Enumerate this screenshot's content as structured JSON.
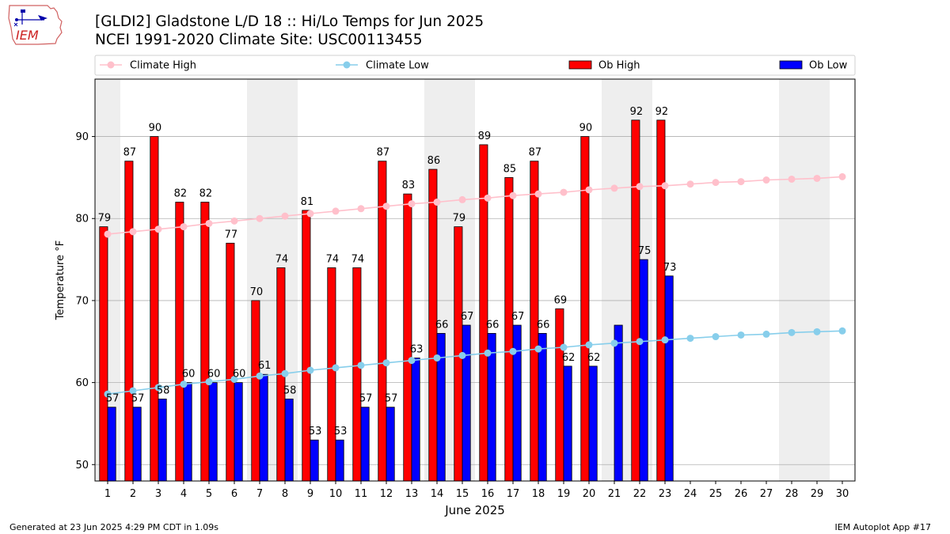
{
  "header": {
    "title_line1": "[GLDI2] Gladstone L/D 18 :: Hi/Lo Temps for Jun 2025",
    "title_line2": "NCEI 1991-2020 Climate Site: USC00113455",
    "logo_text": "IEM"
  },
  "footer": {
    "generated": "Generated at 23 Jun 2025 4:29 PM CDT in 1.09s",
    "app": "IEM Autoplot App #17"
  },
  "colors": {
    "ob_high": "#ff0000",
    "ob_low": "#0000ff",
    "climate_high": "#ffc0cb",
    "climate_low": "#87ceeb",
    "weekend_shade": "#eeeeee",
    "grid": "#b0b0b0"
  },
  "chart_data": {
    "type": "bar",
    "title": "[GLDI2] Gladstone L/D 18 :: Hi/Lo Temps for Jun 2025",
    "subtitle": "NCEI 1991-2020 Climate Site: USC00113455",
    "xlabel": "June 2025",
    "ylabel": "Temperature °F",
    "ylim": [
      48,
      97
    ],
    "yticks": [
      50,
      60,
      70,
      80,
      90
    ],
    "grid": true,
    "legend_placement": "top, above plot",
    "categories": [
      "1",
      "2",
      "3",
      "4",
      "5",
      "6",
      "7",
      "8",
      "9",
      "10",
      "11",
      "12",
      "13",
      "14",
      "15",
      "16",
      "17",
      "18",
      "19",
      "20",
      "21",
      "22",
      "23",
      "24",
      "25",
      "26",
      "27",
      "28",
      "29",
      "30"
    ],
    "weekend_shaded_days": [
      1,
      7,
      8,
      14,
      15,
      21,
      22,
      28,
      29
    ],
    "series": [
      {
        "name": "Ob High",
        "kind": "bar",
        "values": [
          79,
          87,
          90,
          82,
          82,
          77,
          70,
          74,
          81,
          74,
          74,
          87,
          83,
          86,
          79,
          89,
          85,
          87,
          69,
          90,
          null,
          92,
          92,
          null,
          null,
          null,
          null,
          null,
          null,
          null
        ]
      },
      {
        "name": "Ob Low",
        "kind": "bar",
        "values": [
          57,
          57,
          58,
          60,
          60,
          60,
          61,
          58,
          53,
          53,
          57,
          57,
          63,
          66,
          67,
          66,
          67,
          66,
          62,
          62,
          67,
          75,
          73,
          null,
          null,
          null,
          null,
          null,
          null,
          null
        ]
      },
      {
        "name": "Climate High",
        "kind": "line",
        "values": [
          78.1,
          78.4,
          78.7,
          79.0,
          79.4,
          79.7,
          80.0,
          80.3,
          80.6,
          80.9,
          81.2,
          81.5,
          81.8,
          82.0,
          82.3,
          82.5,
          82.8,
          83.0,
          83.2,
          83.5,
          83.7,
          83.9,
          84.0,
          84.2,
          84.4,
          84.5,
          84.7,
          84.8,
          84.9,
          85.1
        ]
      },
      {
        "name": "Climate Low",
        "kind": "line",
        "values": [
          58.6,
          59.0,
          59.4,
          59.8,
          60.1,
          60.4,
          60.8,
          61.1,
          61.5,
          61.8,
          62.1,
          62.4,
          62.7,
          63.0,
          63.3,
          63.6,
          63.8,
          64.1,
          64.3,
          64.6,
          64.8,
          65.0,
          65.2,
          65.4,
          65.6,
          65.8,
          65.9,
          66.1,
          66.2,
          66.3
        ]
      }
    ],
    "labels": {
      "ob_high": [
        "79",
        "87",
        "90",
        "82",
        "82",
        "77",
        "70",
        "74",
        "81",
        "74",
        "74",
        "87",
        "83",
        "86",
        "79",
        "89",
        "85",
        "87",
        "69",
        "90",
        "",
        "92",
        "92",
        "",
        "",
        "",
        "",
        "",
        "",
        ""
      ],
      "ob_low": [
        "57",
        "57",
        "58",
        "60",
        "60",
        "60",
        "61",
        "58",
        "53",
        "53",
        "57",
        "57",
        "63",
        "66",
        "67",
        "66",
        "67",
        "66",
        "62",
        "62",
        "",
        "75",
        "73",
        "",
        "",
        "",
        "",
        "",
        "",
        ""
      ]
    }
  }
}
